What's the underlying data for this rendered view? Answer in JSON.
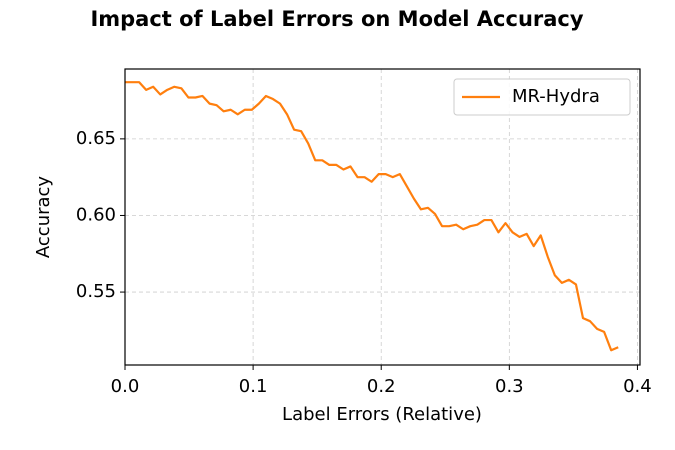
{
  "chart_data": {
    "type": "line",
    "title": "Impact of Label Errors on Model Accuracy",
    "x_label": "Label Errors (Relative)",
    "y_label": "Accuracy",
    "x": [
      0,
      0.0055,
      0.011,
      0.0165,
      0.022,
      0.0275,
      0.033,
      0.0385,
      0.044,
      0.0495,
      0.055,
      0.0605,
      0.066,
      0.0715,
      0.077,
      0.0825,
      0.088,
      0.0935,
      0.099,
      0.1045,
      0.11,
      0.1155,
      0.121,
      0.1265,
      0.132,
      0.1375,
      0.143,
      0.1485,
      0.154,
      0.1595,
      0.165,
      0.1705,
      0.176,
      0.1815,
      0.187,
      0.1925,
      0.198,
      0.2035,
      0.209,
      0.2145,
      0.22,
      0.2255,
      0.231,
      0.2365,
      0.242,
      0.2475,
      0.253,
      0.2585,
      0.264,
      0.2695,
      0.275,
      0.2805,
      0.286,
      0.2915,
      0.297,
      0.3025,
      0.308,
      0.3135,
      0.319,
      0.3245,
      0.33,
      0.3355,
      0.341,
      0.3465,
      0.352,
      0.3575,
      0.363,
      0.3685,
      0.374,
      0.3795,
      0.385
    ],
    "series": [
      {
        "name": "MR-Hydra",
        "color": "#ff7f0e",
        "values": [
          0.687,
          0.687,
          0.687,
          0.682,
          0.684,
          0.679,
          0.682,
          0.684,
          0.683,
          0.677,
          0.677,
          0.678,
          0.673,
          0.672,
          0.668,
          0.669,
          0.666,
          0.669,
          0.669,
          0.673,
          0.678,
          0.676,
          0.673,
          0.666,
          0.656,
          0.655,
          0.647,
          0.636,
          0.636,
          0.633,
          0.633,
          0.63,
          0.632,
          0.625,
          0.625,
          0.622,
          0.627,
          0.627,
          0.625,
          0.627,
          0.619,
          0.611,
          0.604,
          0.605,
          0.601,
          0.593,
          0.593,
          0.594,
          0.591,
          0.593,
          0.594,
          0.597,
          0.597,
          0.589,
          0.595,
          0.589,
          0.586,
          0.588,
          0.58,
          0.587,
          0.573,
          0.561,
          0.556,
          0.558,
          0.555,
          0.533,
          0.531,
          0.526,
          0.524,
          0.512,
          0.514
        ]
      }
    ],
    "xlim": [
      0,
      0.402
    ],
    "ylim": [
      0.5024,
      0.6956
    ],
    "xticks": [
      {
        "value": 0,
        "label": "0.0"
      },
      0.1,
      0.2,
      0.3,
      0.4
    ],
    "yticks": [
      0.55,
      {
        "value": 0.6,
        "label": "0.60"
      },
      0.65
    ],
    "grid": true,
    "legend": "upper right"
  }
}
